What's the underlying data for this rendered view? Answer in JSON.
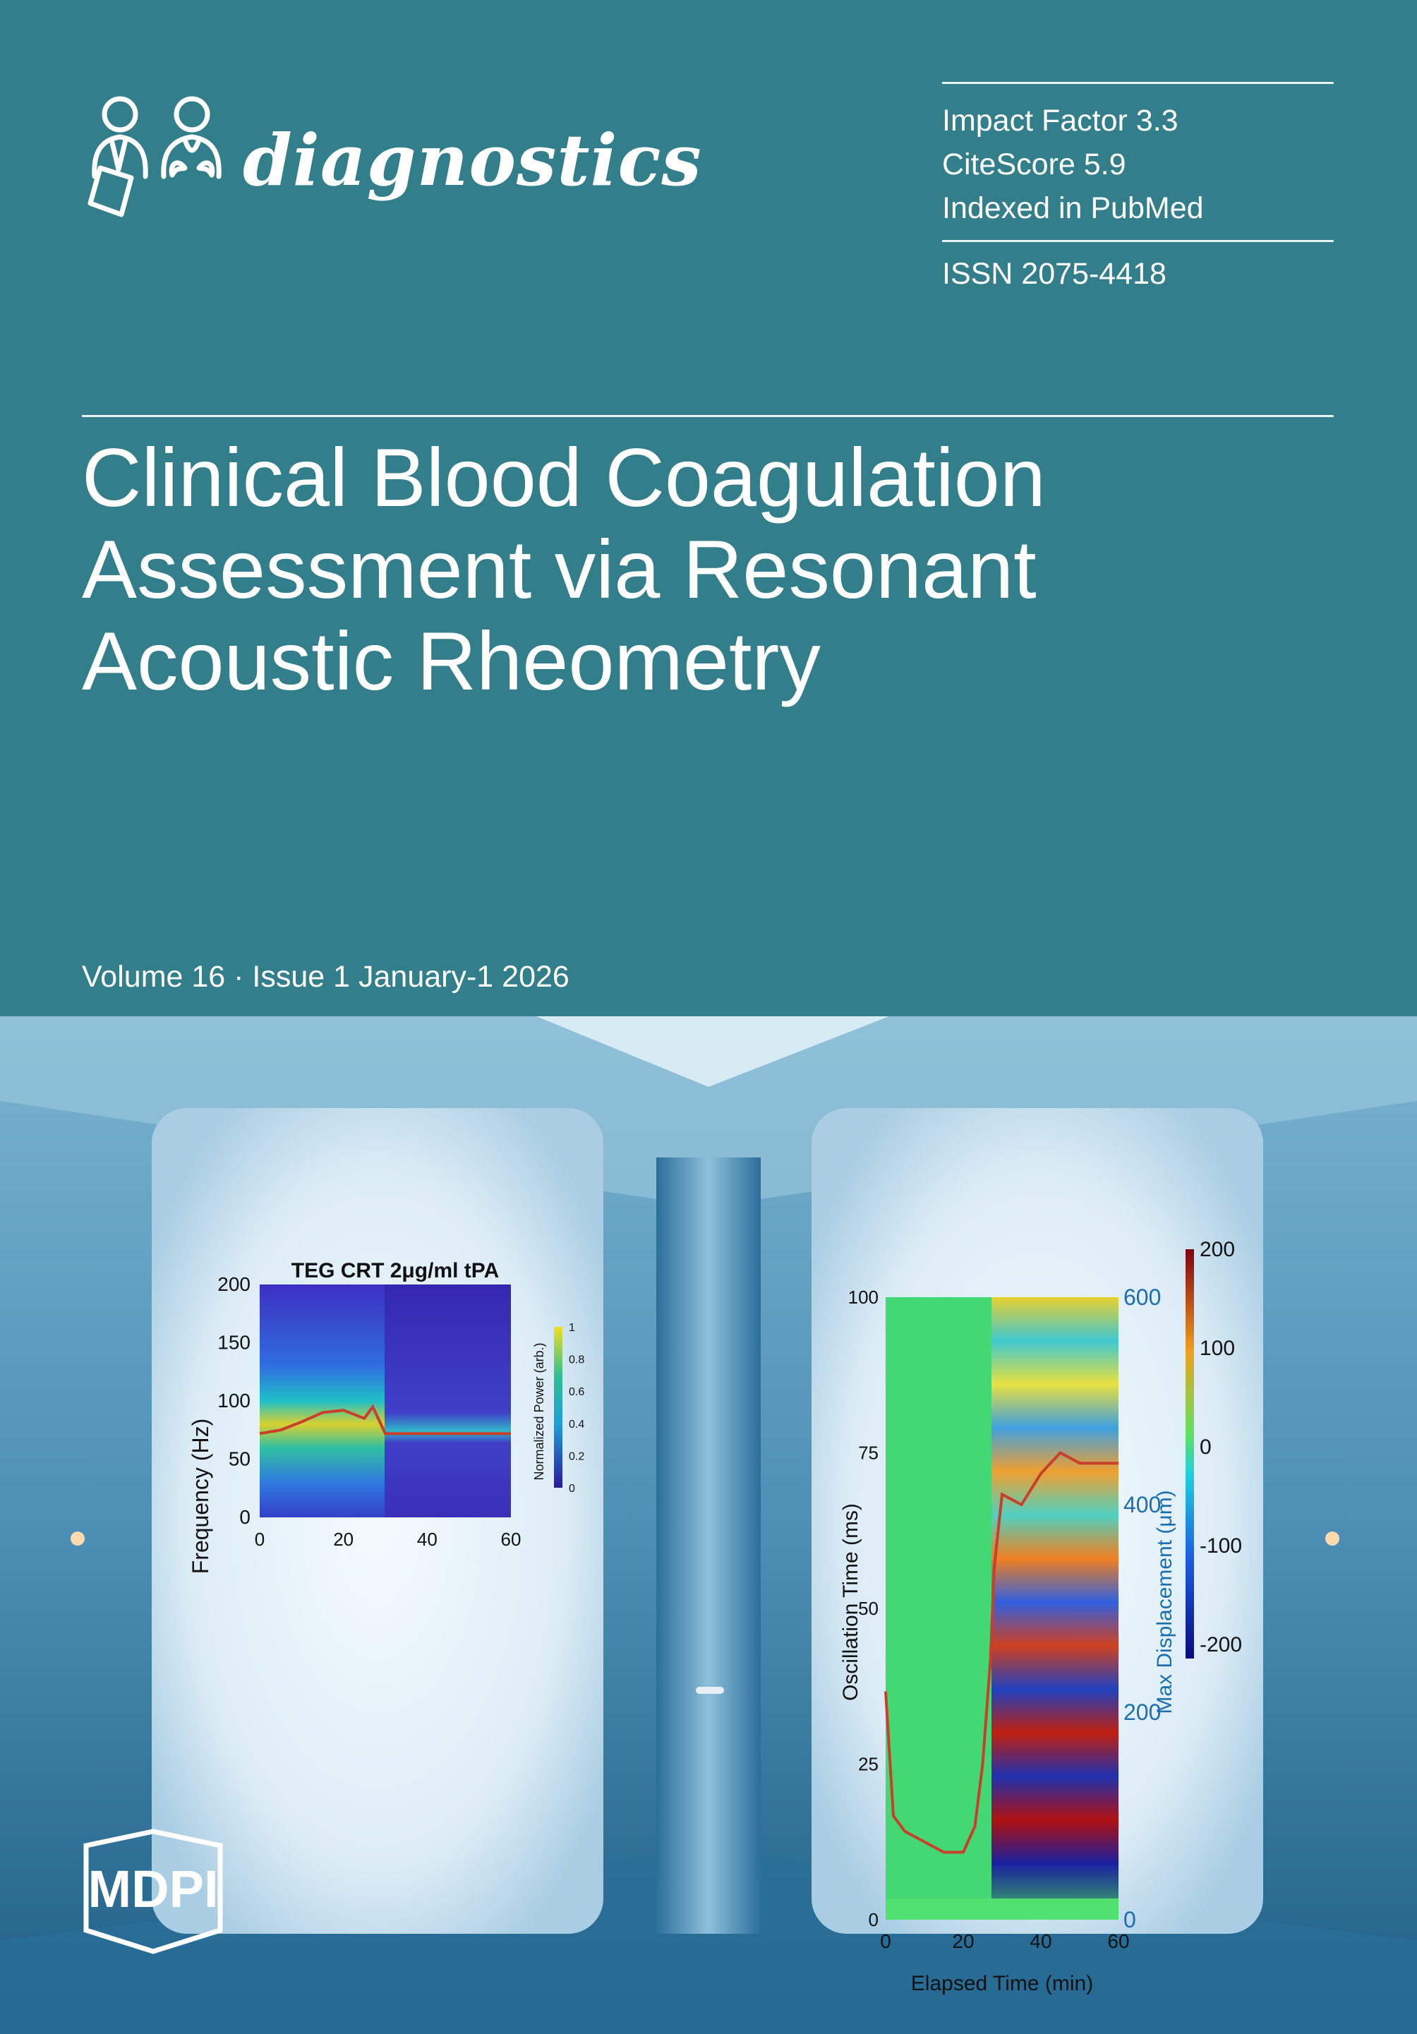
{
  "journal": {
    "name": "diagnostics",
    "metrics": [
      "Impact Factor 3.3",
      "CiteScore 5.9",
      "Indexed in PubMed"
    ],
    "issn": "ISSN 2075-4418"
  },
  "article": {
    "title_lines": [
      "Clinical Blood Coagulation",
      "Assessment via Resonant",
      "Acoustic Rheometry"
    ]
  },
  "issue": {
    "volume_line": "Volume 16 · Issue 1 January-1 2026"
  },
  "publisher": {
    "name": "MDPI"
  },
  "colors": {
    "background": "#327f8b",
    "text": "#ffffff"
  },
  "chart_data": [
    {
      "type": "heatmap",
      "title": "TEG CRT 2μg/ml tPA",
      "xlabel": "",
      "ylabel": "Frequency (Hz)",
      "x_ticks": [
        "0",
        "20",
        "40",
        "60"
      ],
      "y_ticks": [
        "0",
        "50",
        "100",
        "150",
        "200"
      ],
      "xlim": [
        0,
        60
      ],
      "ylim": [
        0,
        200
      ],
      "colorbar_label": "Normalized Power (arb.)",
      "colorbar_ticks": [
        "0",
        "0.2",
        "0.4",
        "0.6",
        "0.8",
        "1"
      ],
      "overlay_line": {
        "x": [
          0,
          5,
          10,
          15,
          20,
          25,
          27,
          30,
          35,
          40,
          50,
          60
        ],
        "y": [
          72,
          75,
          82,
          90,
          92,
          85,
          95,
          72,
          72,
          72,
          72,
          72
        ]
      }
    },
    {
      "type": "heatmap",
      "title": "",
      "xlabel": "Elapsed Time (min)",
      "ylabel": "Oscillation Time (ms)",
      "y2label": "Max Displacement (μm)",
      "x_ticks": [
        "0",
        "20",
        "40",
        "60"
      ],
      "y_ticks": [
        "0",
        "25",
        "50",
        "75",
        "100"
      ],
      "y2_ticks": [
        "0",
        "200",
        "400",
        "600"
      ],
      "xlim": [
        0,
        60
      ],
      "ylim": [
        0,
        100
      ],
      "y2lim": [
        0,
        600
      ],
      "colorbar_ticks": [
        "-200",
        "-100",
        "0",
        "100",
        "200"
      ],
      "overlay_line": {
        "x": [
          0,
          2,
          5,
          10,
          15,
          20,
          23,
          25,
          27,
          28,
          30,
          35,
          40,
          45,
          50,
          55,
          60
        ],
        "y2": [
          220,
          100,
          85,
          75,
          65,
          65,
          90,
          150,
          250,
          340,
          410,
          400,
          430,
          450,
          440,
          440,
          440
        ]
      }
    }
  ]
}
